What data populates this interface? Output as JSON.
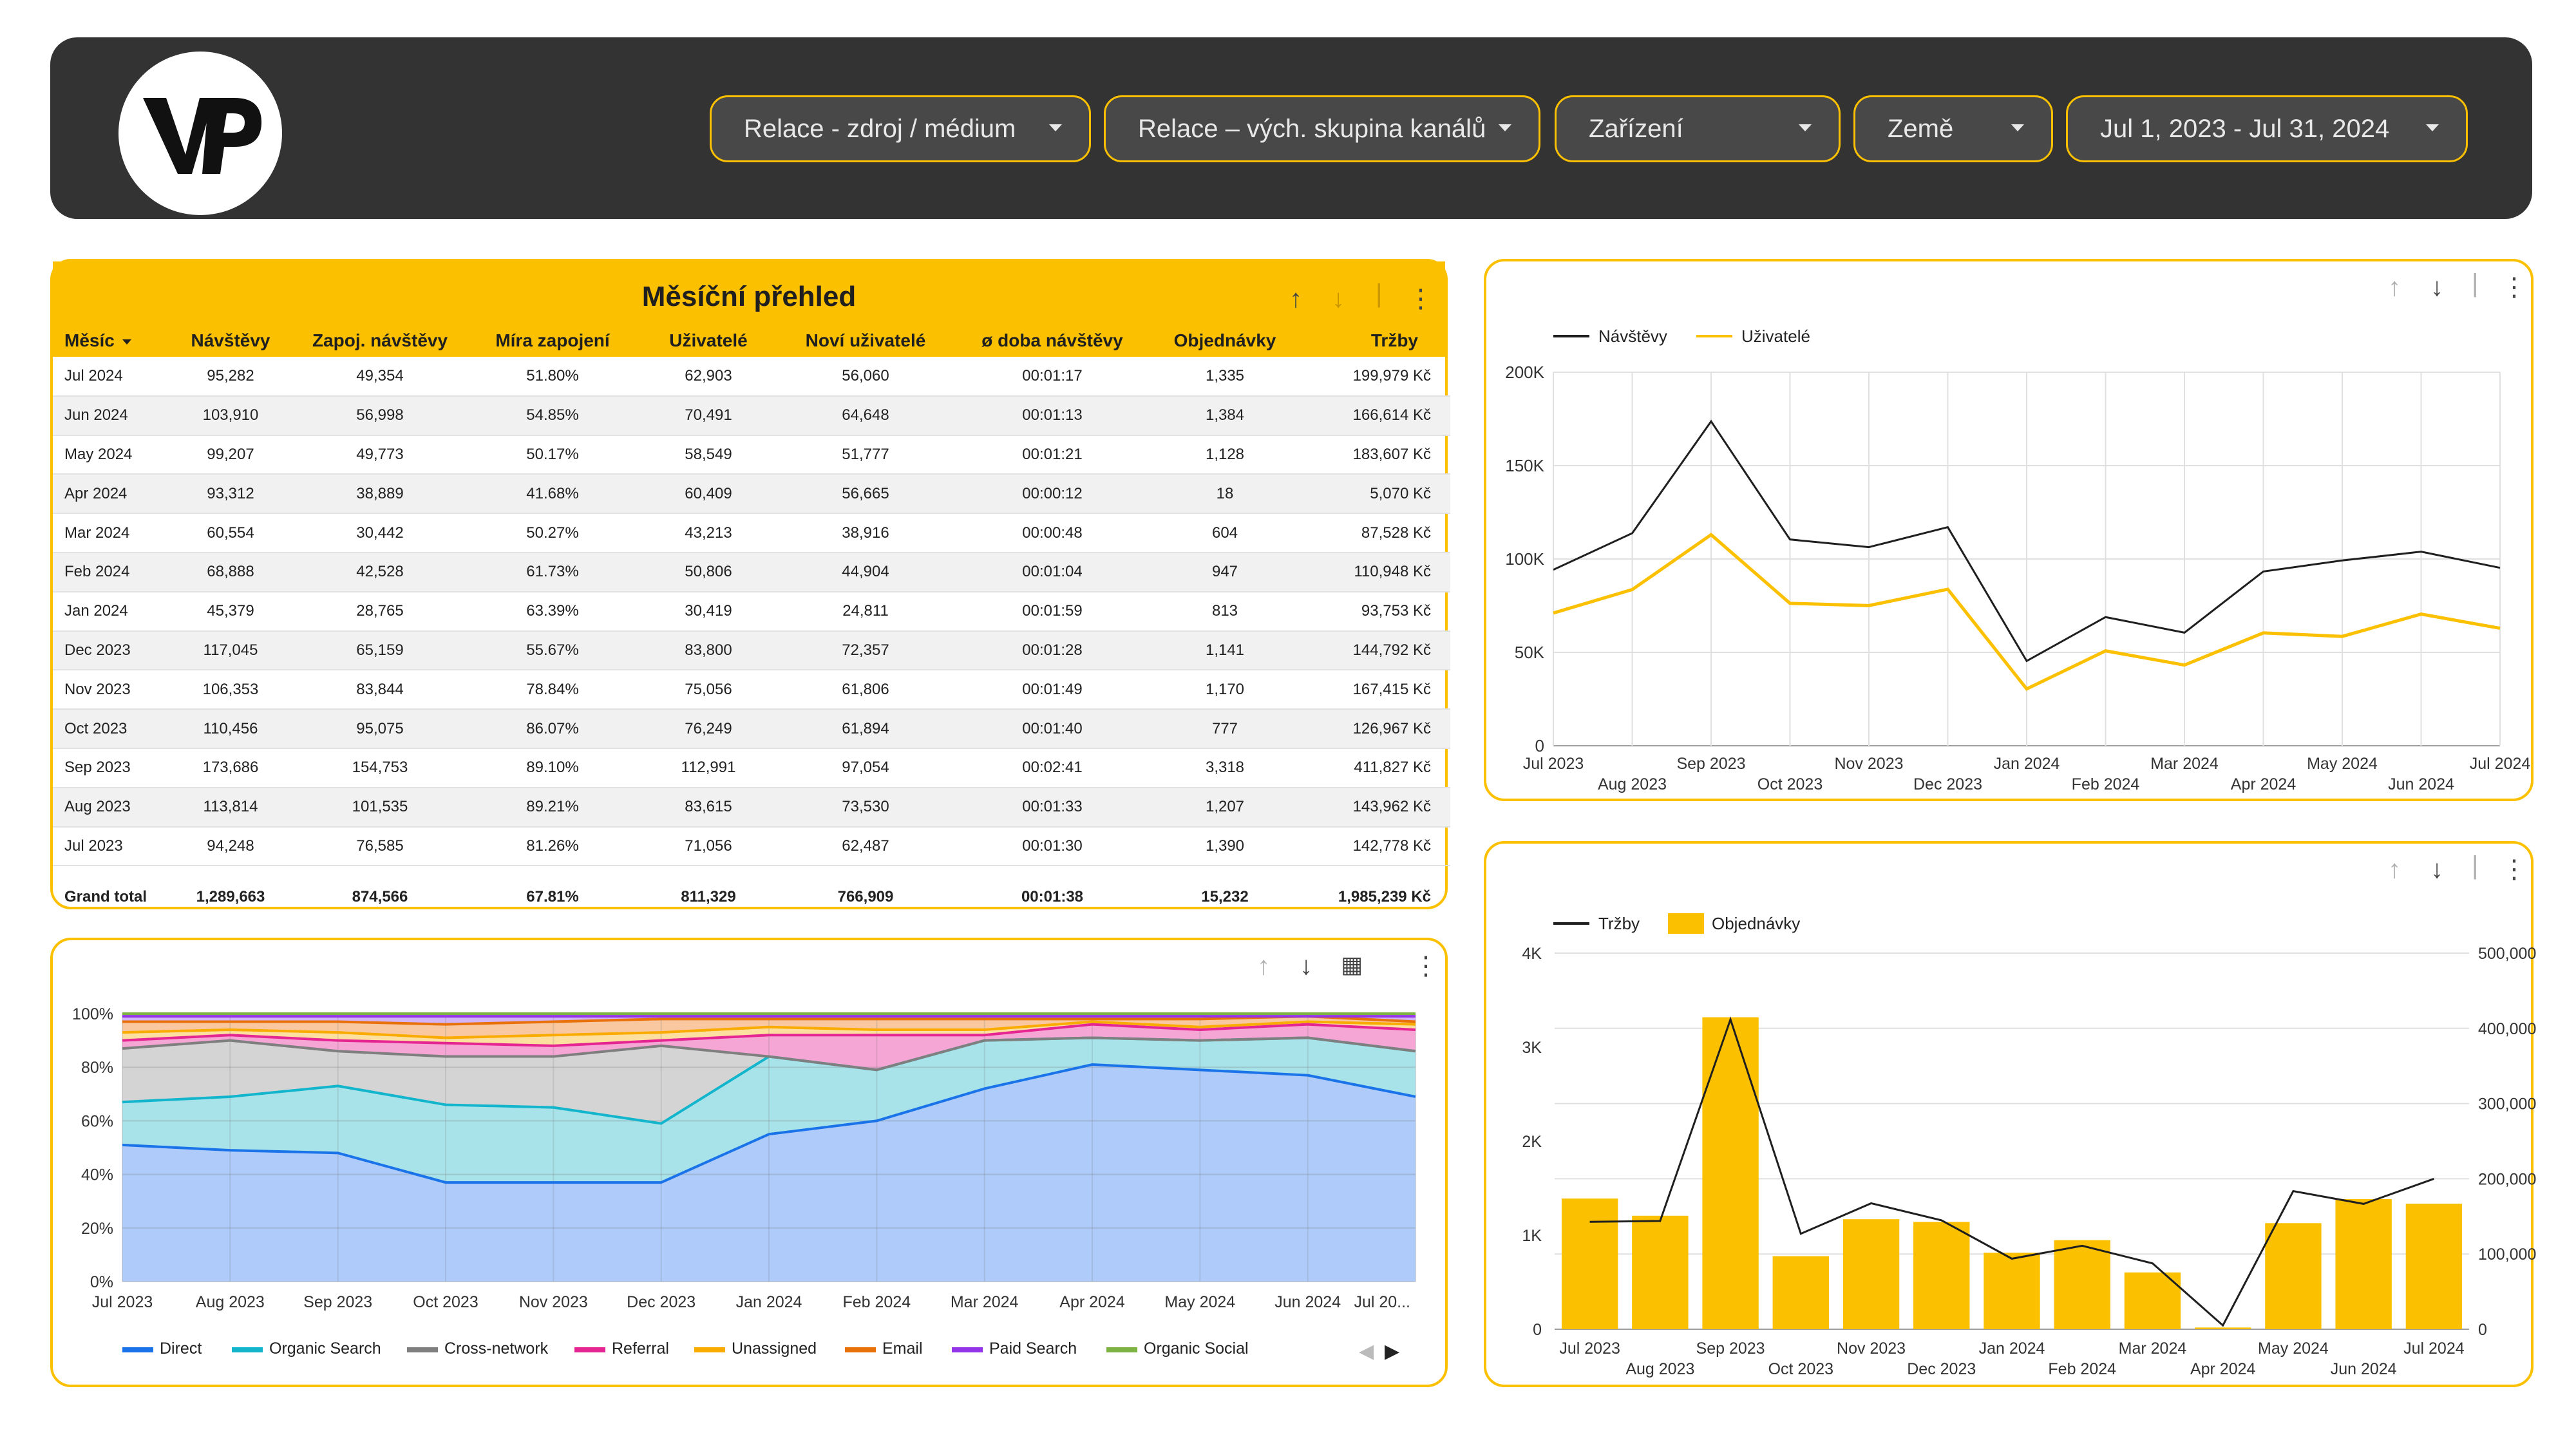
{
  "header": {
    "logo_text": "VP",
    "filters": [
      {
        "label": "Relace - zdroj / médium"
      },
      {
        "label": "Relace – vých. skupina kanálů"
      },
      {
        "label": "Zařízení"
      },
      {
        "label": "Země"
      },
      {
        "label": "Jul 1, 2023 - Jul 31, 2024"
      }
    ]
  },
  "colors": {
    "accent": "#fbc000",
    "header_bg": "#333333",
    "direct": "#1a73e8",
    "organic_search": "#12b5cb",
    "cross_network": "#7f7f7f",
    "referral": "#e52592",
    "unassigned": "#f9ab00",
    "email": "#e8710a",
    "paid_search": "#9334e6",
    "organic_social": "#7cb342"
  },
  "icons": {
    "sort_up": "arrow-up-icon",
    "sort_down": "arrow-down-icon",
    "more": "more-vert-icon",
    "explore": "explore-chart-icon"
  },
  "table": {
    "title": "Měsíční přehled",
    "columns": [
      "Měsíc",
      "Návštěvy",
      "Zapoj. návštěvy",
      "Míra zapojení",
      "Uživatelé",
      "Noví uživatelé",
      "ø doba návštěvy",
      "Objednávky",
      "Tržby"
    ],
    "rows": [
      [
        "Jul 2024",
        "95,282",
        "49,354",
        "51.80%",
        "62,903",
        "56,060",
        "00:01:17",
        "1,335",
        "199,979 Kč"
      ],
      [
        "Jun 2024",
        "103,910",
        "56,998",
        "54.85%",
        "70,491",
        "64,648",
        "00:01:13",
        "1,384",
        "166,614 Kč"
      ],
      [
        "May 2024",
        "99,207",
        "49,773",
        "50.17%",
        "58,549",
        "51,777",
        "00:01:21",
        "1,128",
        "183,607 Kč"
      ],
      [
        "Apr 2024",
        "93,312",
        "38,889",
        "41.68%",
        "60,409",
        "56,665",
        "00:00:12",
        "18",
        "5,070 Kč"
      ],
      [
        "Mar 2024",
        "60,554",
        "30,442",
        "50.27%",
        "43,213",
        "38,916",
        "00:00:48",
        "604",
        "87,528 Kč"
      ],
      [
        "Feb 2024",
        "68,888",
        "42,528",
        "61.73%",
        "50,806",
        "44,904",
        "00:01:04",
        "947",
        "110,948 Kč"
      ],
      [
        "Jan 2024",
        "45,379",
        "28,765",
        "63.39%",
        "30,419",
        "24,811",
        "00:01:59",
        "813",
        "93,753 Kč"
      ],
      [
        "Dec 2023",
        "117,045",
        "65,159",
        "55.67%",
        "83,800",
        "72,357",
        "00:01:28",
        "1,141",
        "144,792 Kč"
      ],
      [
        "Nov 2023",
        "106,353",
        "83,844",
        "78.84%",
        "75,056",
        "61,806",
        "00:01:49",
        "1,170",
        "167,415 Kč"
      ],
      [
        "Oct 2023",
        "110,456",
        "95,075",
        "86.07%",
        "76,249",
        "61,894",
        "00:01:40",
        "777",
        "126,967 Kč"
      ],
      [
        "Sep 2023",
        "173,686",
        "154,753",
        "89.10%",
        "112,991",
        "97,054",
        "00:02:41",
        "3,318",
        "411,827 Kč"
      ],
      [
        "Aug 2023",
        "113,814",
        "101,535",
        "89.21%",
        "83,615",
        "73,530",
        "00:01:33",
        "1,207",
        "143,962 Kč"
      ],
      [
        "Jul 2023",
        "94,248",
        "76,585",
        "81.26%",
        "71,056",
        "62,487",
        "00:01:30",
        "1,390",
        "142,778 Kč"
      ]
    ],
    "total": [
      "Grand total",
      "1,289,663",
      "874,566",
      "67.81%",
      "811,329",
      "766,909",
      "00:01:38",
      "15,232",
      "1,985,239 Kč"
    ]
  },
  "chart_data": [
    {
      "type": "line",
      "x": [
        "Jul 2023",
        "Aug 2023",
        "Sep 2023",
        "Oct 2023",
        "Nov 2023",
        "Dec 2023",
        "Jan 2024",
        "Feb 2024",
        "Mar 2024",
        "Apr 2024",
        "May 2024",
        "Jun 2024",
        "Jul 2024"
      ],
      "series": [
        {
          "name": "Návštěvy",
          "color": "#1f1f1f",
          "values": [
            94248,
            113814,
            173686,
            110456,
            106353,
            117045,
            45379,
            68888,
            60554,
            93312,
            99207,
            103910,
            95282
          ]
        },
        {
          "name": "Uživatelé",
          "color": "#fbc000",
          "values": [
            71056,
            83615,
            112991,
            76249,
            75056,
            83800,
            30419,
            50806,
            43213,
            60409,
            58549,
            70491,
            62903
          ]
        }
      ],
      "ylim": [
        0,
        200000
      ],
      "yticks": [
        "0",
        "50K",
        "100K",
        "150K",
        "200K"
      ],
      "legend": "top-left",
      "grid": true
    },
    {
      "type": "area",
      "stacked_percent": true,
      "x": [
        "Jul 2023",
        "Aug 2023",
        "Sep 2023",
        "Oct 2023",
        "Nov 2023",
        "Dec 2023",
        "Jan 2024",
        "Feb 2024",
        "Mar 2024",
        "Apr 2024",
        "May 2024",
        "Jun 2024",
        "Jul 20..."
      ],
      "series": [
        {
          "name": "Direct",
          "color": "#1a73e8",
          "values": [
            51,
            49,
            48,
            37,
            37,
            37,
            55,
            60,
            72,
            81,
            79,
            77,
            69
          ]
        },
        {
          "name": "Organic Search",
          "color": "#12b5cb",
          "values": [
            16,
            20,
            25,
            29,
            28,
            22,
            29,
            19,
            18,
            10,
            11,
            14,
            17
          ]
        },
        {
          "name": "Cross-network",
          "color": "#7f7f7f",
          "values": [
            20,
            21,
            13,
            18,
            19,
            29,
            0,
            0,
            0,
            0,
            0,
            0,
            0
          ]
        },
        {
          "name": "Referral",
          "color": "#e52592",
          "values": [
            3,
            2,
            4,
            5,
            4,
            2,
            8,
            13,
            2,
            5,
            4,
            5,
            8
          ]
        },
        {
          "name": "Unassigned",
          "color": "#f9ab00",
          "values": [
            3,
            2,
            3,
            2,
            4,
            3,
            3,
            2,
            2,
            1,
            1,
            1,
            2
          ]
        },
        {
          "name": "Email",
          "color": "#e8710a",
          "values": [
            4,
            3,
            4,
            5,
            5,
            5,
            3,
            4,
            4,
            1,
            3,
            2,
            1
          ]
        },
        {
          "name": "Paid Search",
          "color": "#9334e6",
          "values": [
            2,
            2,
            2,
            3,
            2,
            1,
            1,
            1,
            1,
            1,
            1,
            0,
            2
          ]
        },
        {
          "name": "Organic Social",
          "color": "#7cb342",
          "values": [
            1,
            1,
            1,
            1,
            1,
            1,
            1,
            1,
            1,
            1,
            1,
            1,
            1
          ]
        }
      ],
      "ylim": [
        0,
        100
      ],
      "yticks": [
        "0%",
        "20%",
        "40%",
        "60%",
        "80%",
        "100%"
      ],
      "legend": "bottom"
    },
    {
      "type": "bar",
      "x": [
        "Jul 2023",
        "Aug 2023",
        "Sep 2023",
        "Oct 2023",
        "Nov 2023",
        "Dec 2023",
        "Jan 2024",
        "Feb 2024",
        "Mar 2024",
        "Apr 2024",
        "May 2024",
        "Jun 2024",
        "Jul 2024"
      ],
      "series": [
        {
          "name": "Tržby",
          "kind": "line",
          "axis": "right",
          "color": "#1f1f1f",
          "values": [
            142778,
            143962,
            411827,
            126967,
            167415,
            144792,
            93753,
            110948,
            87528,
            5070,
            183607,
            166614,
            199979
          ]
        },
        {
          "name": "Objednávky",
          "kind": "bar",
          "axis": "left",
          "color": "#fbc000",
          "values": [
            1390,
            1207,
            3318,
            777,
            1170,
            1141,
            813,
            947,
            604,
            18,
            1128,
            1384,
            1335
          ]
        }
      ],
      "ylim_left": [
        0,
        4000
      ],
      "yticks_left": [
        "0",
        "1K",
        "2K",
        "3K",
        "4K"
      ],
      "ylim_right": [
        0,
        500000
      ],
      "yticks_right": [
        "0",
        "100,000",
        "200,000",
        "300,000",
        "400,000",
        "500,000"
      ],
      "legend": "top-left",
      "grid": true
    }
  ]
}
